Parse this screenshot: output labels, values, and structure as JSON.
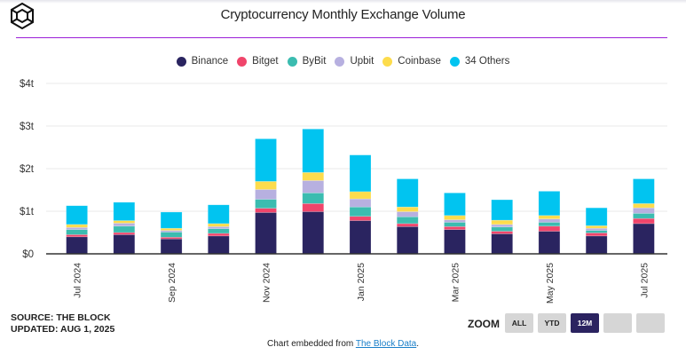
{
  "header": {
    "title": "Cryptocurrency Monthly Exchange Volume",
    "logo": "the-block-cube-logo"
  },
  "footer": {
    "source": "SOURCE: THE BLOCK",
    "updated": "UPDATED: AUG 1, 2025",
    "zoom_label": "ZOOM",
    "zoom_buttons": [
      {
        "label": "ALL",
        "active": false
      },
      {
        "label": "YTD",
        "active": false
      },
      {
        "label": "12M",
        "active": true
      },
      {
        "label": "",
        "active": false
      },
      {
        "label": "",
        "active": false
      }
    ],
    "embed_prefix": "Chart embedded from ",
    "embed_link": "The Block Data",
    "embed_suffix": "."
  },
  "colors": {
    "accent_rule": "#9b1fd8",
    "active_button": "#2b2360"
  },
  "chart_data": {
    "type": "bar",
    "stacked": true,
    "title": "Cryptocurrency Monthly Exchange Volume",
    "xlabel": "",
    "ylabel": "",
    "ylim": [
      0,
      4
    ],
    "y_unit": "trillion USD",
    "y_ticks": [
      0,
      1,
      2,
      3,
      4
    ],
    "y_tick_labels": [
      "$0",
      "$1t",
      "$2t",
      "$3t",
      "$4t"
    ],
    "grid": true,
    "legend_position": "top-center",
    "categories": [
      "Jul 2024",
      "Aug 2024",
      "Sep 2024",
      "Oct 2024",
      "Nov 2024",
      "Dec 2024",
      "Jan 2025",
      "Feb 2025",
      "Mar 2025",
      "Apr 2025",
      "May 2025",
      "Jun 2025",
      "Jul 2025"
    ],
    "x_tick_labels": [
      {
        "index": 0,
        "label": "Jul 2024"
      },
      {
        "index": 2,
        "label": "Sep 2024"
      },
      {
        "index": 4,
        "label": "Nov 2024"
      },
      {
        "index": 6,
        "label": "Jan 2025"
      },
      {
        "index": 8,
        "label": "Mar 2025"
      },
      {
        "index": 10,
        "label": "May 2025"
      },
      {
        "index": 12,
        "label": "Jul 2025"
      }
    ],
    "series": [
      {
        "name": "Binance",
        "color": "#2a2460",
        "values": [
          0.4,
          0.45,
          0.35,
          0.42,
          0.97,
          0.99,
          0.78,
          0.64,
          0.57,
          0.47,
          0.53,
          0.42,
          0.71
        ]
      },
      {
        "name": "Bitget",
        "color": "#f0456b",
        "values": [
          0.05,
          0.05,
          0.04,
          0.06,
          0.1,
          0.19,
          0.1,
          0.07,
          0.07,
          0.06,
          0.12,
          0.07,
          0.12
        ]
      },
      {
        "name": "ByBit",
        "color": "#3bbcb0",
        "values": [
          0.12,
          0.15,
          0.12,
          0.11,
          0.21,
          0.25,
          0.22,
          0.16,
          0.1,
          0.1,
          0.09,
          0.06,
          0.12
        ]
      },
      {
        "name": "Upbit",
        "color": "#b7b0e0",
        "values": [
          0.05,
          0.07,
          0.04,
          0.05,
          0.23,
          0.29,
          0.19,
          0.12,
          0.06,
          0.06,
          0.08,
          0.05,
          0.13
        ]
      },
      {
        "name": "Coinbase",
        "color": "#fddc4c",
        "values": [
          0.07,
          0.06,
          0.05,
          0.07,
          0.19,
          0.19,
          0.17,
          0.11,
          0.1,
          0.1,
          0.08,
          0.06,
          0.1
        ]
      },
      {
        "name": "34 Others",
        "color": "#01c4f0",
        "values": [
          0.44,
          0.43,
          0.38,
          0.44,
          1.0,
          1.02,
          0.86,
          0.66,
          0.53,
          0.48,
          0.57,
          0.42,
          0.58
        ]
      }
    ]
  }
}
